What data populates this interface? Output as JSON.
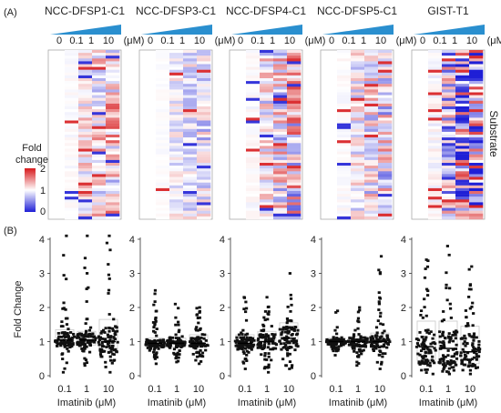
{
  "panel_a_label": "(A)",
  "panel_b_label": "(B)",
  "colorbar": {
    "title_line1": "Fold",
    "title_line2": "change",
    "ticks": [
      "2",
      "1",
      "0"
    ],
    "colors": {
      "high": "#d7191c",
      "mid": "#ffffff",
      "low": "#1f1fd6"
    }
  },
  "substrate_label": "Substrate",
  "dose_unit": "(μM)",
  "heatmap_columns": [
    "0",
    "0.1",
    "1",
    "10"
  ],
  "heatmap_rows": 60,
  "cell_lines": [
    {
      "name": "NCC-DFSP1-C1",
      "seed": 11,
      "intensity": 0.45,
      "bias": 0.15
    },
    {
      "name": "NCC-DFSP3-C1",
      "seed": 23,
      "intensity": 0.3,
      "bias": -0.1
    },
    {
      "name": "NCC-DFSP4-C1",
      "seed": 37,
      "intensity": 0.55,
      "bias": 0.05
    },
    {
      "name": "NCC-DFSP5-C1",
      "seed": 51,
      "intensity": 0.45,
      "bias": 0.0
    },
    {
      "name": "GIST-T1",
      "seed": 71,
      "intensity": 0.95,
      "bias": -0.35
    }
  ],
  "chart_data": {
    "type": "scatter",
    "ylabel": "Fold Change",
    "xlabel": "Imatinib (μM)",
    "categories": [
      "0.1",
      "1",
      "10"
    ],
    "ylim": [
      0,
      4
    ],
    "yticks": [
      "0",
      "1",
      "2",
      "3",
      "4"
    ],
    "panels": [
      {
        "name": "NCC-DFSP1-C1",
        "series": [
          {
            "x": "0.1",
            "median": 1.05,
            "q1": 0.9,
            "q3": 1.35,
            "min": 0.1,
            "max": 4.1
          },
          {
            "x": "1",
            "median": 1.05,
            "q1": 0.9,
            "q3": 1.3,
            "min": 0.3,
            "max": 4.1
          },
          {
            "x": "10",
            "median": 1.0,
            "q1": 0.75,
            "q3": 1.65,
            "min": 0.1,
            "max": 4.1
          }
        ]
      },
      {
        "name": "NCC-DFSP3-C1",
        "series": [
          {
            "x": "0.1",
            "median": 0.95,
            "q1": 0.85,
            "q3": 1.1,
            "min": 0.35,
            "max": 2.5
          },
          {
            "x": "1",
            "median": 0.95,
            "q1": 0.85,
            "q3": 1.1,
            "min": 0.4,
            "max": 2.1
          },
          {
            "x": "10",
            "median": 0.95,
            "q1": 0.85,
            "q3": 1.2,
            "min": 0.35,
            "max": 2.0
          }
        ]
      },
      {
        "name": "NCC-DFSP4-C1",
        "series": [
          {
            "x": "0.1",
            "median": 0.95,
            "q1": 0.8,
            "q3": 1.2,
            "min": 0.2,
            "max": 2.3
          },
          {
            "x": "1",
            "median": 1.0,
            "q1": 0.8,
            "q3": 1.3,
            "min": 0.1,
            "max": 2.3
          },
          {
            "x": "10",
            "median": 1.1,
            "q1": 0.8,
            "q3": 1.55,
            "min": 0.2,
            "max": 3.0
          }
        ]
      },
      {
        "name": "NCC-DFSP5-C1",
        "series": [
          {
            "x": "0.1",
            "median": 1.0,
            "q1": 0.9,
            "q3": 1.1,
            "min": 0.6,
            "max": 1.9
          },
          {
            "x": "1",
            "median": 1.0,
            "q1": 0.85,
            "q3": 1.15,
            "min": 0.3,
            "max": 2.0
          },
          {
            "x": "10",
            "median": 1.0,
            "q1": 0.85,
            "q3": 1.25,
            "min": 0.2,
            "max": 3.5
          }
        ]
      },
      {
        "name": "GIST-T1",
        "series": [
          {
            "x": "0.1",
            "median": 0.85,
            "q1": 0.45,
            "q3": 1.6,
            "min": 0.05,
            "max": 3.4
          },
          {
            "x": "1",
            "median": 0.8,
            "q1": 0.4,
            "q3": 1.6,
            "min": 0.05,
            "max": 3.8
          },
          {
            "x": "10",
            "median": 0.7,
            "q1": 0.35,
            "q3": 1.45,
            "min": 0.05,
            "max": 3.2
          }
        ]
      }
    ]
  }
}
